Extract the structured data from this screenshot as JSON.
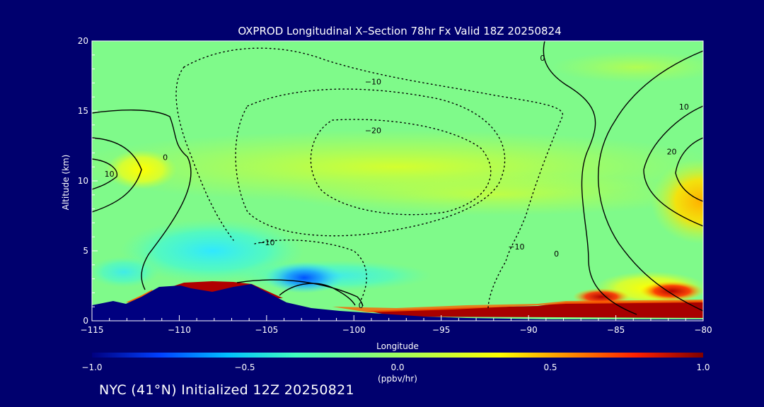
{
  "chart_data": {
    "type": "heatmap",
    "title": "OXPROD Longitudinal X–Section 78hr  Fx Valid 18Z 20250824",
    "xlabel": "Longitude",
    "ylabel": "Altitude (km)",
    "xlim": [
      -115,
      -80
    ],
    "ylim": [
      0,
      20
    ],
    "x_ticks": [
      "−115",
      "−110",
      "−105",
      "−100",
      "−95",
      "−90",
      "−85",
      "−80"
    ],
    "x_tick_values": [
      -115,
      -110,
      -105,
      -100,
      -95,
      -90,
      -85,
      -80
    ],
    "y_ticks": [
      "0",
      "5",
      "10",
      "15",
      "20"
    ],
    "y_tick_values": [
      0,
      5,
      10,
      15,
      20
    ],
    "colorbar": {
      "min": -1.0,
      "max": 1.0,
      "unit": "(ppbv/hr)",
      "tick_labels": [
        "−1.0",
        "−0.5",
        "0.0",
        "0.5",
        "1.0"
      ],
      "tick_values": [
        -1.0,
        -0.5,
        0.0,
        0.5,
        1.0
      ],
      "colors": [
        "#00007f",
        "#0040ff",
        "#00c0ff",
        "#40ffbf",
        "#80ff80",
        "#c0ff40",
        "#ffff00",
        "#ff9000",
        "#ff2000",
        "#7f0000"
      ]
    },
    "field_regions": [
      {
        "name": "upper-yellow-band",
        "lon": -97,
        "alt": 11.2,
        "value": 0.3
      },
      {
        "name": "west-yellow-core",
        "lon": -112.5,
        "alt": 10.8,
        "value": 0.35
      },
      {
        "name": "east-orange-core",
        "lon": -80.5,
        "alt": 8.5,
        "value": 0.5
      },
      {
        "name": "cyan-low-level",
        "lon": -107,
        "alt": 5.5,
        "value": -0.3
      },
      {
        "name": "blue-minimum",
        "lon": -103,
        "alt": 3.2,
        "value": -0.65
      },
      {
        "name": "boundary-layer-red",
        "lon": -93,
        "alt": 0.8,
        "value": 0.95
      },
      {
        "name": "east-red-patch",
        "lon": -82,
        "alt": 2.2,
        "value": 0.9
      }
    ],
    "contour_labels": [
      {
        "text": "0",
        "lon": -89.2,
        "alt": 18.8
      },
      {
        "text": "0",
        "lon": -110.8,
        "alt": 11.7
      },
      {
        "text": "0",
        "lon": -88.4,
        "alt": 4.8
      },
      {
        "text": "0",
        "lon": -99.6,
        "alt": 1.1
      },
      {
        "text": "10",
        "lon": -114.0,
        "alt": 10.5
      },
      {
        "text": "−10",
        "lon": -98.9,
        "alt": 17.1
      },
      {
        "text": "−20",
        "lon": -98.9,
        "alt": 13.6
      },
      {
        "text": "−10",
        "lon": -105.0,
        "alt": 5.6
      },
      {
        "text": "−10",
        "lon": -90.7,
        "alt": 5.3
      },
      {
        "text": "10",
        "lon": -81.1,
        "alt": 15.3
      },
      {
        "text": "20",
        "lon": -81.8,
        "alt": 12.1
      }
    ],
    "grid": false
  },
  "footer_text": "NYC (41°N) Initialized 12Z 20250821"
}
